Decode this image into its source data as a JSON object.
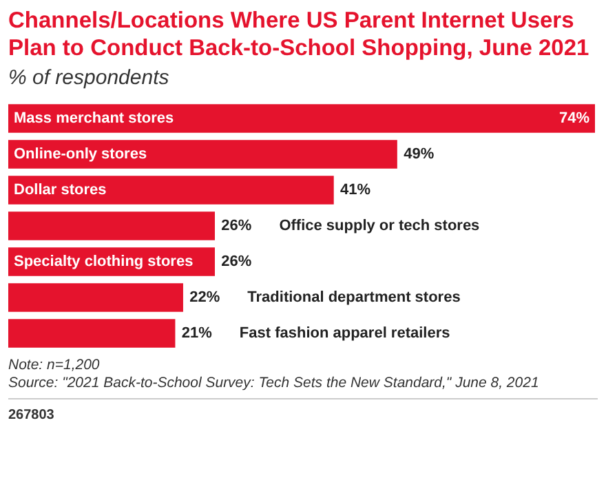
{
  "chart_data": {
    "type": "bar",
    "orientation": "horizontal",
    "title": "Channels/Locations Where US Parent Internet Users Plan to Conduct Back-to-School Shopping, June 2021",
    "subtitle": "% of respondents",
    "categories": [
      "Mass merchant stores",
      "Online-only stores",
      "Dollar stores",
      "Office supply or tech stores",
      "Specialty clothing stores",
      "Traditional department stores",
      "Fast fashion apparel retailers"
    ],
    "values": [
      74,
      49,
      41,
      26,
      26,
      22,
      21
    ],
    "value_labels": [
      "74%",
      "49%",
      "41%",
      "26%",
      "26%",
      "22%",
      "21%"
    ],
    "color": "#e5132d",
    "grid": false,
    "legend": false,
    "tick_labels": false,
    "annotations": [
      "Note: n=1,200",
      "Source: \"2021 Back-to-School Survey: Tech Sets the New Standard,\" June 8, 2021",
      "267803"
    ]
  }
}
